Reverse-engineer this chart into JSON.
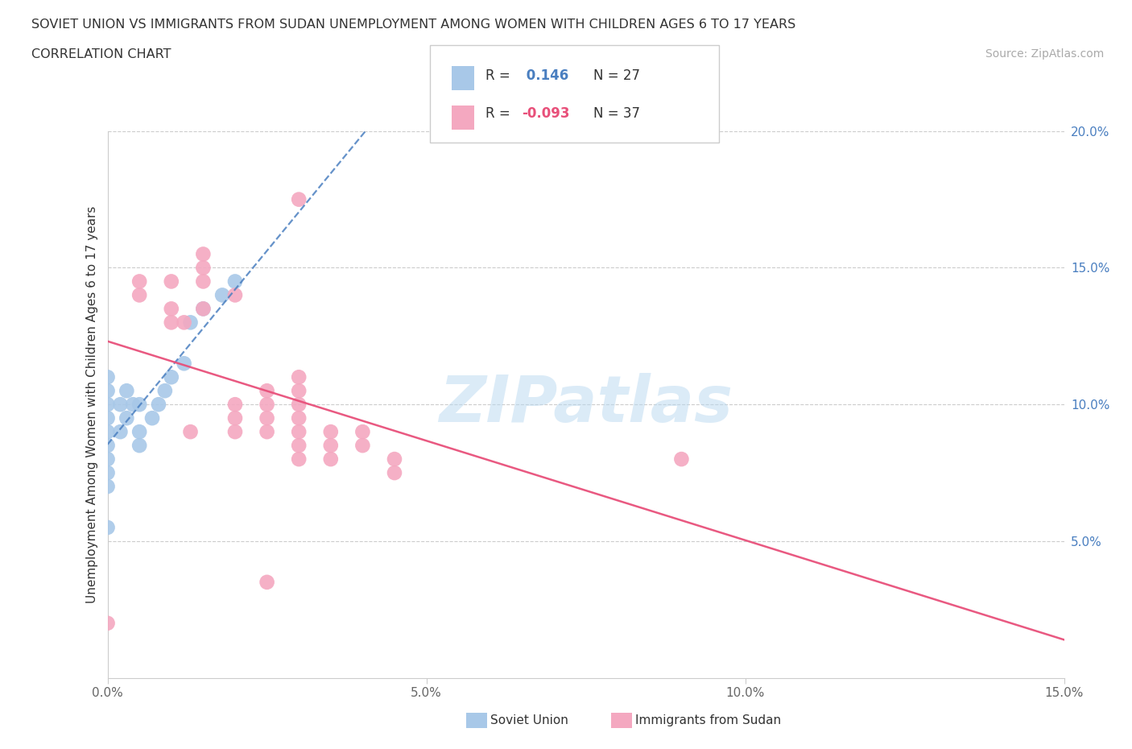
{
  "title_line1": "SOVIET UNION VS IMMIGRANTS FROM SUDAN UNEMPLOYMENT AMONG WOMEN WITH CHILDREN AGES 6 TO 17 YEARS",
  "title_line2": "CORRELATION CHART",
  "source_text": "Source: ZipAtlas.com",
  "ylabel": "Unemployment Among Women with Children Ages 6 to 17 years",
  "xlim": [
    0.0,
    0.15
  ],
  "ylim": [
    0.0,
    0.2
  ],
  "xtick_vals": [
    0.0,
    0.05,
    0.1,
    0.15
  ],
  "xtick_labels": [
    "0.0%",
    "5.0%",
    "10.0%",
    "15.0%"
  ],
  "ytick_vals": [
    0.05,
    0.1,
    0.15,
    0.2
  ],
  "ytick_labels": [
    "5.0%",
    "10.0%",
    "15.0%",
    "20.0%"
  ],
  "watermark_text": "ZIPatlas",
  "soviet_color": "#a8c8e8",
  "sudan_color": "#f4a8c0",
  "soviet_line_color": "#4a7fc0",
  "sudan_line_color": "#e8507a",
  "soviet_R": 0.146,
  "soviet_N": 27,
  "sudan_R": -0.093,
  "sudan_N": 37,
  "soviet_x": [
    0.0,
    0.0,
    0.0,
    0.0,
    0.0,
    0.0,
    0.0,
    0.0,
    0.0,
    0.0,
    0.002,
    0.002,
    0.003,
    0.003,
    0.004,
    0.005,
    0.005,
    0.005,
    0.007,
    0.008,
    0.009,
    0.01,
    0.012,
    0.013,
    0.015,
    0.018,
    0.02
  ],
  "soviet_y": [
    0.055,
    0.07,
    0.075,
    0.08,
    0.085,
    0.09,
    0.095,
    0.1,
    0.105,
    0.11,
    0.09,
    0.1,
    0.095,
    0.105,
    0.1,
    0.085,
    0.09,
    0.1,
    0.095,
    0.1,
    0.105,
    0.11,
    0.115,
    0.13,
    0.135,
    0.14,
    0.145
  ],
  "sudan_x": [
    0.0,
    0.005,
    0.005,
    0.01,
    0.01,
    0.01,
    0.012,
    0.013,
    0.015,
    0.015,
    0.015,
    0.015,
    0.02,
    0.02,
    0.02,
    0.02,
    0.025,
    0.025,
    0.025,
    0.025,
    0.03,
    0.03,
    0.03,
    0.03,
    0.03,
    0.03,
    0.03,
    0.035,
    0.035,
    0.035,
    0.04,
    0.04,
    0.045,
    0.045,
    0.09,
    0.025,
    0.03
  ],
  "sudan_y": [
    0.02,
    0.14,
    0.145,
    0.13,
    0.135,
    0.145,
    0.13,
    0.09,
    0.135,
    0.145,
    0.15,
    0.155,
    0.09,
    0.095,
    0.1,
    0.14,
    0.09,
    0.095,
    0.1,
    0.105,
    0.08,
    0.085,
    0.09,
    0.095,
    0.1,
    0.105,
    0.11,
    0.08,
    0.085,
    0.09,
    0.085,
    0.09,
    0.075,
    0.08,
    0.08,
    0.035,
    0.175
  ]
}
